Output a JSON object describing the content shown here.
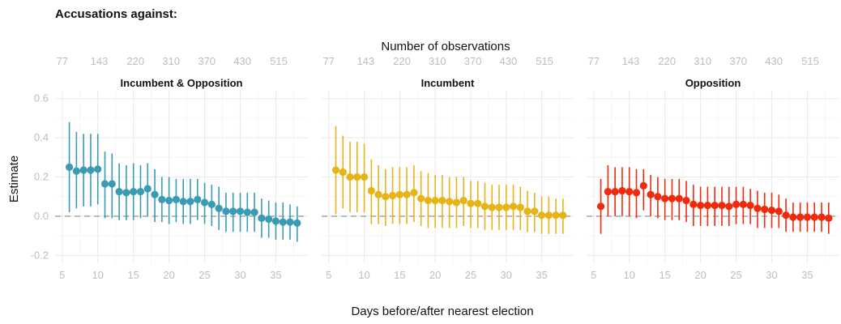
{
  "heading": "Accusations against:",
  "chart_data": {
    "type": "scatter",
    "subtype": "pointrange",
    "title": "Accusations against:",
    "secondary_axis_title": "Number of observations",
    "xlabel": "Days before/after nearest election",
    "ylabel": "Estimate",
    "ylim": [
      -0.24,
      0.64
    ],
    "yticks": [
      -0.2,
      0.0,
      0.2,
      0.4,
      0.6
    ],
    "ytick_labels": [
      "-0.2",
      "0.0",
      "0.2",
      "0.4",
      "0.6"
    ],
    "xlim": [
      4,
      39.5
    ],
    "xticks": [
      5,
      10,
      15,
      20,
      25,
      30,
      35
    ],
    "top_ticks": [
      {
        "x": 5,
        "label": "77"
      },
      {
        "x": 10.2,
        "label": "143"
      },
      {
        "x": 15.3,
        "label": "220"
      },
      {
        "x": 20.3,
        "label": "310"
      },
      {
        "x": 25.3,
        "label": "370"
      },
      {
        "x": 30.3,
        "label": "430"
      },
      {
        "x": 35.4,
        "label": "515"
      }
    ],
    "reference_line": 0,
    "grid": true,
    "legend": "none",
    "panels": [
      {
        "name": "Incumbent & Opposition",
        "color": "#3a9bb5",
        "x": [
          6,
          7,
          8,
          9,
          10,
          11,
          12,
          13,
          14,
          15,
          16,
          17,
          18,
          19,
          20,
          21,
          22,
          23,
          24,
          25,
          26,
          27,
          28,
          29,
          30,
          31,
          32,
          33,
          34,
          35,
          36,
          37,
          38
        ],
        "estimate": [
          0.25,
          0.23,
          0.235,
          0.235,
          0.24,
          0.165,
          0.165,
          0.125,
          0.12,
          0.125,
          0.125,
          0.14,
          0.11,
          0.085,
          0.08,
          0.085,
          0.075,
          0.075,
          0.085,
          0.07,
          0.06,
          0.04,
          0.025,
          0.025,
          0.025,
          0.02,
          0.02,
          -0.01,
          -0.015,
          -0.025,
          -0.03,
          -0.03,
          -0.035
        ],
        "lower": [
          0.02,
          0.04,
          0.05,
          0.05,
          0.06,
          -0.01,
          -0.01,
          -0.02,
          -0.02,
          -0.02,
          -0.01,
          0.0,
          -0.03,
          -0.03,
          -0.04,
          -0.03,
          -0.04,
          -0.04,
          -0.02,
          -0.04,
          -0.05,
          -0.07,
          -0.08,
          -0.08,
          -0.08,
          -0.08,
          -0.08,
          -0.11,
          -0.11,
          -0.12,
          -0.12,
          -0.12,
          -0.13
        ],
        "upper": [
          0.48,
          0.43,
          0.42,
          0.42,
          0.42,
          0.33,
          0.32,
          0.27,
          0.26,
          0.27,
          0.26,
          0.27,
          0.24,
          0.2,
          0.2,
          0.19,
          0.19,
          0.19,
          0.19,
          0.17,
          0.16,
          0.15,
          0.12,
          0.12,
          0.12,
          0.12,
          0.12,
          0.09,
          0.08,
          0.07,
          0.07,
          0.06,
          0.05
        ]
      },
      {
        "name": "Incumbent",
        "color": "#e6b417",
        "x": [
          6,
          7,
          8,
          9,
          10,
          11,
          12,
          13,
          14,
          15,
          16,
          17,
          18,
          19,
          20,
          21,
          22,
          23,
          24,
          25,
          26,
          27,
          28,
          29,
          30,
          31,
          32,
          33,
          34,
          35,
          36,
          37,
          38
        ],
        "estimate": [
          0.235,
          0.225,
          0.2,
          0.2,
          0.2,
          0.13,
          0.11,
          0.1,
          0.105,
          0.11,
          0.11,
          0.12,
          0.09,
          0.08,
          0.08,
          0.08,
          0.075,
          0.07,
          0.08,
          0.065,
          0.065,
          0.05,
          0.045,
          0.045,
          0.045,
          0.05,
          0.045,
          0.025,
          0.025,
          0.005,
          0.005,
          0.005,
          0.005
        ],
        "lower": [
          0.01,
          0.04,
          0.02,
          0.02,
          0.02,
          -0.04,
          -0.04,
          -0.05,
          -0.04,
          -0.04,
          -0.04,
          -0.03,
          -0.05,
          -0.06,
          -0.06,
          -0.06,
          -0.06,
          -0.06,
          -0.05,
          -0.06,
          -0.06,
          -0.07,
          -0.07,
          -0.07,
          -0.07,
          -0.07,
          -0.07,
          -0.08,
          -0.08,
          -0.09,
          -0.09,
          -0.09,
          -0.09
        ],
        "upper": [
          0.46,
          0.41,
          0.38,
          0.38,
          0.37,
          0.29,
          0.26,
          0.24,
          0.25,
          0.25,
          0.25,
          0.26,
          0.23,
          0.22,
          0.21,
          0.21,
          0.2,
          0.2,
          0.2,
          0.18,
          0.18,
          0.17,
          0.16,
          0.16,
          0.16,
          0.16,
          0.15,
          0.13,
          0.12,
          0.1,
          0.1,
          0.09,
          0.09
        ]
      },
      {
        "name": "Opposition",
        "color": "#ef2a0d",
        "x": [
          6,
          7,
          8,
          9,
          10,
          11,
          12,
          13,
          14,
          15,
          16,
          17,
          18,
          19,
          20,
          21,
          22,
          23,
          24,
          25,
          26,
          27,
          28,
          29,
          30,
          31,
          32,
          33,
          34,
          35,
          36,
          37,
          38
        ],
        "estimate": [
          0.05,
          0.125,
          0.125,
          0.13,
          0.125,
          0.12,
          0.155,
          0.11,
          0.1,
          0.09,
          0.09,
          0.09,
          0.08,
          0.06,
          0.055,
          0.055,
          0.055,
          0.055,
          0.05,
          0.06,
          0.06,
          0.055,
          0.04,
          0.035,
          0.03,
          0.025,
          0.005,
          -0.005,
          -0.005,
          -0.005,
          -0.005,
          -0.005,
          -0.01
        ],
        "lower": [
          -0.09,
          0.0,
          0.0,
          0.0,
          0.0,
          -0.01,
          0.03,
          0.0,
          -0.01,
          -0.02,
          -0.02,
          -0.02,
          -0.03,
          -0.05,
          -0.05,
          -0.05,
          -0.05,
          -0.05,
          -0.05,
          -0.04,
          -0.04,
          -0.04,
          -0.06,
          -0.06,
          -0.06,
          -0.06,
          -0.08,
          -0.08,
          -0.08,
          -0.08,
          -0.08,
          -0.08,
          -0.09
        ],
        "upper": [
          0.19,
          0.26,
          0.25,
          0.25,
          0.25,
          0.24,
          0.24,
          0.21,
          0.2,
          0.19,
          0.19,
          0.19,
          0.18,
          0.16,
          0.15,
          0.15,
          0.15,
          0.15,
          0.15,
          0.15,
          0.15,
          0.14,
          0.13,
          0.12,
          0.12,
          0.11,
          0.09,
          0.07,
          0.07,
          0.07,
          0.07,
          0.07,
          0.07
        ]
      }
    ]
  }
}
